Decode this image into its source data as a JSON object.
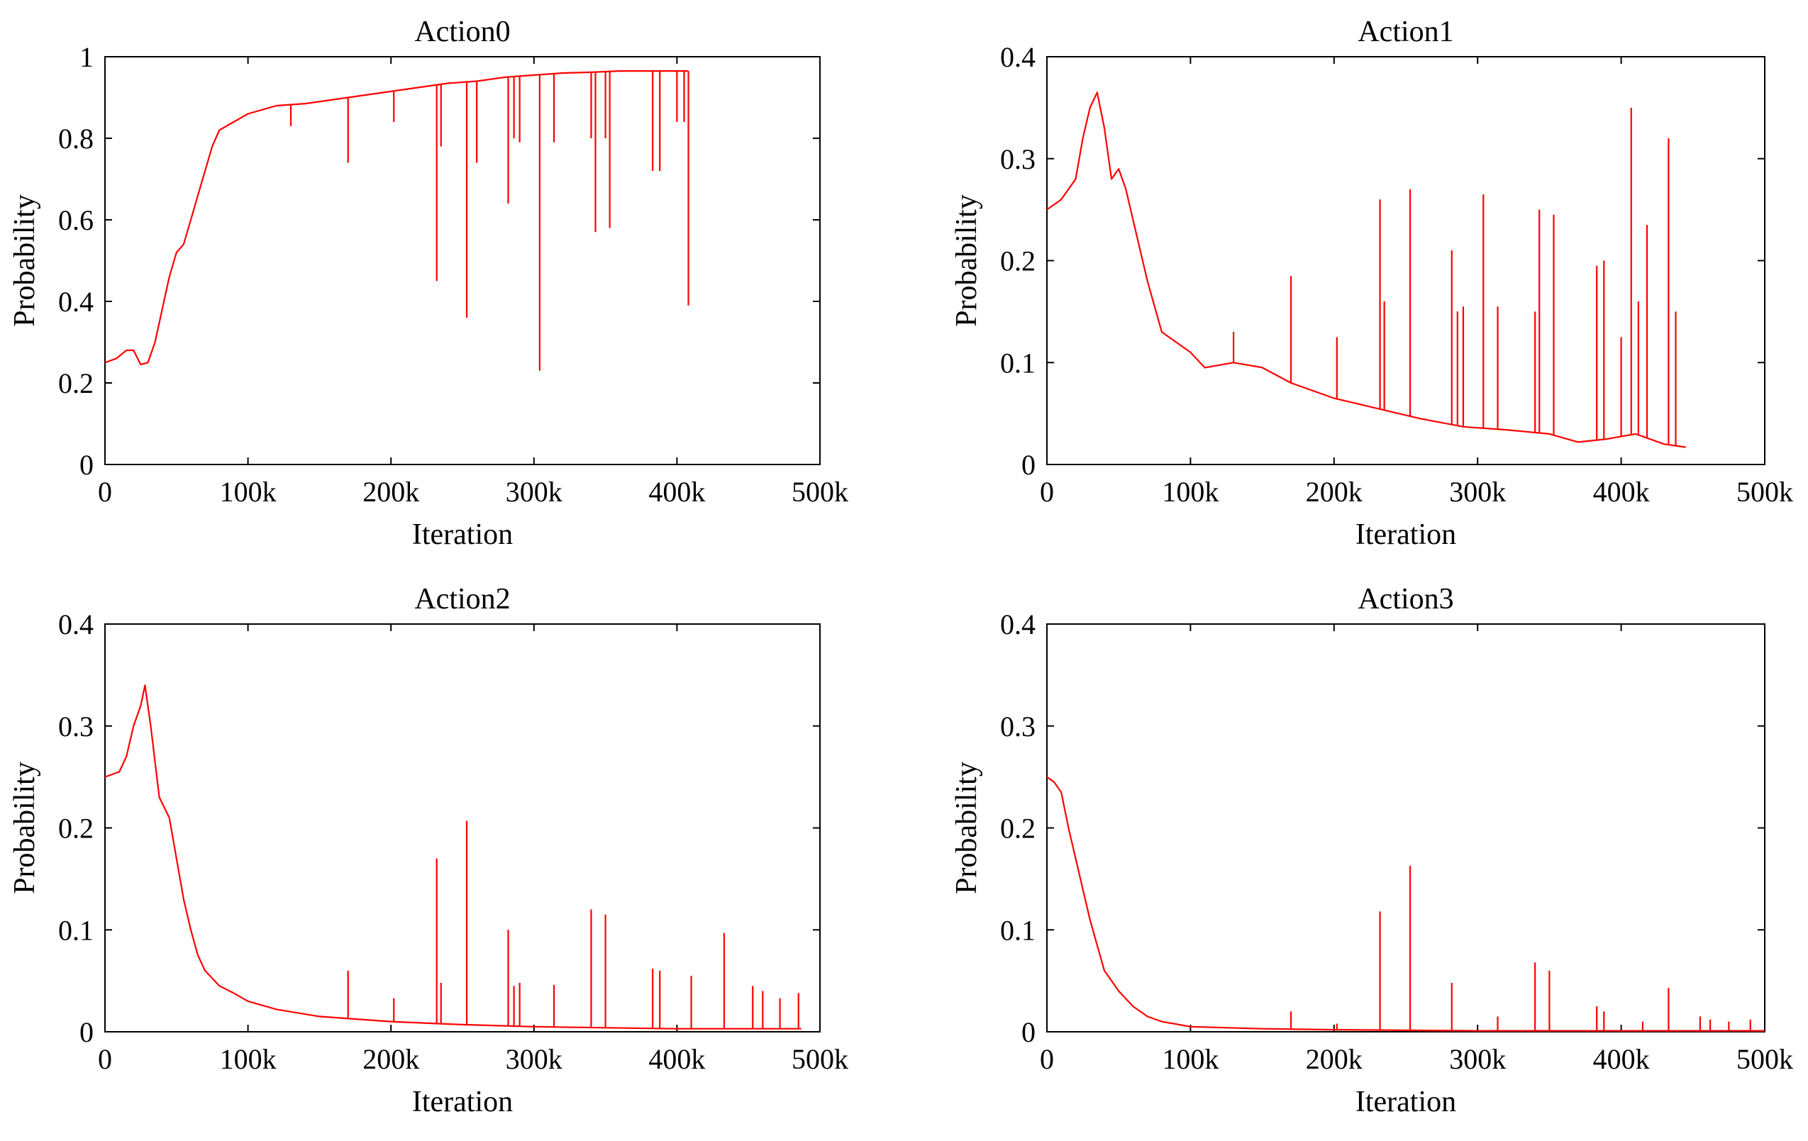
{
  "chart_data": [
    {
      "type": "line",
      "title": "Action0",
      "xlabel": "Iteration",
      "ylabel": "Probability",
      "xlim": [
        0,
        500000
      ],
      "ylim": [
        0,
        1
      ],
      "xticks": [
        0,
        100000,
        200000,
        300000,
        400000,
        500000
      ],
      "xticklabels": [
        "0",
        "100k",
        "200k",
        "300k",
        "400k",
        "500k"
      ],
      "yticks": [
        0,
        0.2,
        0.4,
        0.6,
        0.8,
        1
      ],
      "yticklabels": [
        "0",
        "0.2",
        "0.4",
        "0.6",
        "0.8",
        "1"
      ],
      "color": "#ff0000",
      "series": [
        {
          "name": "Action0",
          "x": [
            0,
            8000,
            15000,
            20000,
            25000,
            30000,
            35000,
            40000,
            45000,
            50000,
            55000,
            60000,
            65000,
            70000,
            75000,
            80000,
            90000,
            100000,
            120000,
            140000,
            160000,
            180000,
            200000,
            220000,
            240000,
            260000,
            280000,
            300000,
            320000,
            340000,
            360000,
            380000,
            400000,
            408000
          ],
          "y": [
            0.25,
            0.26,
            0.28,
            0.28,
            0.245,
            0.25,
            0.3,
            0.38,
            0.46,
            0.52,
            0.54,
            0.6,
            0.66,
            0.72,
            0.78,
            0.82,
            0.84,
            0.86,
            0.88,
            0.885,
            0.895,
            0.905,
            0.915,
            0.925,
            0.935,
            0.94,
            0.95,
            0.955,
            0.96,
            0.962,
            0.965,
            0.965,
            0.965,
            0.965
          ]
        }
      ],
      "spikes": [
        {
          "x": 130000,
          "y": 0.83
        },
        {
          "x": 170000,
          "y": 0.74
        },
        {
          "x": 202000,
          "y": 0.84
        },
        {
          "x": 232000,
          "y": 0.45
        },
        {
          "x": 235000,
          "y": 0.78
        },
        {
          "x": 253000,
          "y": 0.36
        },
        {
          "x": 260000,
          "y": 0.74
        },
        {
          "x": 282000,
          "y": 0.64
        },
        {
          "x": 286000,
          "y": 0.8
        },
        {
          "x": 290000,
          "y": 0.79
        },
        {
          "x": 304000,
          "y": 0.23
        },
        {
          "x": 314000,
          "y": 0.79
        },
        {
          "x": 340000,
          "y": 0.8
        },
        {
          "x": 343000,
          "y": 0.57
        },
        {
          "x": 350000,
          "y": 0.8
        },
        {
          "x": 353000,
          "y": 0.58
        },
        {
          "x": 383000,
          "y": 0.72
        },
        {
          "x": 388000,
          "y": 0.72
        },
        {
          "x": 400000,
          "y": 0.84
        },
        {
          "x": 405000,
          "y": 0.84
        },
        {
          "x": 408000,
          "y": 0.39
        }
      ]
    },
    {
      "type": "line",
      "title": "Action1",
      "xlabel": "Iteration",
      "ylabel": "Probability",
      "xlim": [
        0,
        500000
      ],
      "ylim": [
        0,
        0.4
      ],
      "xticks": [
        0,
        100000,
        200000,
        300000,
        400000,
        500000
      ],
      "xticklabels": [
        "0",
        "100k",
        "200k",
        "300k",
        "400k",
        "500k"
      ],
      "yticks": [
        0,
        0.1,
        0.2,
        0.3,
        0.4
      ],
      "yticklabels": [
        "0",
        "0.1",
        "0.2",
        "0.3",
        "0.4"
      ],
      "color": "#ff0000",
      "series": [
        {
          "name": "Action1",
          "x": [
            0,
            10000,
            20000,
            25000,
            30000,
            35000,
            40000,
            45000,
            50000,
            55000,
            60000,
            70000,
            80000,
            90000,
            100000,
            110000,
            130000,
            150000,
            170000,
            200000,
            230000,
            260000,
            290000,
            320000,
            350000,
            370000,
            390000,
            410000,
            430000,
            445000
          ],
          "y": [
            0.25,
            0.26,
            0.28,
            0.32,
            0.35,
            0.365,
            0.33,
            0.28,
            0.29,
            0.27,
            0.24,
            0.18,
            0.13,
            0.12,
            0.11,
            0.095,
            0.1,
            0.095,
            0.08,
            0.065,
            0.055,
            0.045,
            0.037,
            0.034,
            0.03,
            0.022,
            0.025,
            0.03,
            0.02,
            0.017
          ]
        }
      ],
      "spikes": [
        {
          "x": 130000,
          "y": 0.13
        },
        {
          "x": 170000,
          "y": 0.185
        },
        {
          "x": 202000,
          "y": 0.125
        },
        {
          "x": 232000,
          "y": 0.26
        },
        {
          "x": 235000,
          "y": 0.16
        },
        {
          "x": 253000,
          "y": 0.27
        },
        {
          "x": 282000,
          "y": 0.21
        },
        {
          "x": 286000,
          "y": 0.15
        },
        {
          "x": 290000,
          "y": 0.155
        },
        {
          "x": 304000,
          "y": 0.265
        },
        {
          "x": 314000,
          "y": 0.155
        },
        {
          "x": 340000,
          "y": 0.15
        },
        {
          "x": 343000,
          "y": 0.25
        },
        {
          "x": 353000,
          "y": 0.245
        },
        {
          "x": 383000,
          "y": 0.195
        },
        {
          "x": 388000,
          "y": 0.2
        },
        {
          "x": 400000,
          "y": 0.125
        },
        {
          "x": 407000,
          "y": 0.35
        },
        {
          "x": 412000,
          "y": 0.16
        },
        {
          "x": 418000,
          "y": 0.235
        },
        {
          "x": 433000,
          "y": 0.32
        },
        {
          "x": 438000,
          "y": 0.15
        }
      ]
    },
    {
      "type": "line",
      "title": "Action2",
      "xlabel": "Iteration",
      "ylabel": "Probability",
      "xlim": [
        0,
        500000
      ],
      "ylim": [
        0,
        0.4
      ],
      "xticks": [
        0,
        100000,
        200000,
        300000,
        400000,
        500000
      ],
      "xticklabels": [
        "0",
        "100k",
        "200k",
        "300k",
        "400k",
        "500k"
      ],
      "yticks": [
        0,
        0.1,
        0.2,
        0.3,
        0.4
      ],
      "yticklabels": [
        "0",
        "0.1",
        "0.2",
        "0.3",
        "0.4"
      ],
      "color": "#ff0000",
      "series": [
        {
          "name": "Action2",
          "x": [
            0,
            10000,
            15000,
            20000,
            25000,
            28000,
            32000,
            38000,
            45000,
            50000,
            55000,
            60000,
            65000,
            70000,
            80000,
            90000,
            100000,
            120000,
            150000,
            200000,
            250000,
            300000,
            350000,
            400000,
            450000,
            487000
          ],
          "y": [
            0.25,
            0.255,
            0.27,
            0.3,
            0.32,
            0.34,
            0.3,
            0.23,
            0.21,
            0.17,
            0.13,
            0.1,
            0.075,
            0.06,
            0.045,
            0.038,
            0.03,
            0.022,
            0.015,
            0.01,
            0.007,
            0.005,
            0.004,
            0.003,
            0.003,
            0.003
          ]
        }
      ],
      "spikes": [
        {
          "x": 170000,
          "y": 0.06
        },
        {
          "x": 202000,
          "y": 0.033
        },
        {
          "x": 232000,
          "y": 0.17
        },
        {
          "x": 235000,
          "y": 0.048
        },
        {
          "x": 253000,
          "y": 0.207
        },
        {
          "x": 282000,
          "y": 0.1
        },
        {
          "x": 286000,
          "y": 0.045
        },
        {
          "x": 290000,
          "y": 0.048
        },
        {
          "x": 314000,
          "y": 0.046
        },
        {
          "x": 340000,
          "y": 0.12
        },
        {
          "x": 350000,
          "y": 0.115
        },
        {
          "x": 383000,
          "y": 0.062
        },
        {
          "x": 388000,
          "y": 0.06
        },
        {
          "x": 410000,
          "y": 0.055
        },
        {
          "x": 433000,
          "y": 0.097
        },
        {
          "x": 453000,
          "y": 0.045
        },
        {
          "x": 460000,
          "y": 0.04
        },
        {
          "x": 472000,
          "y": 0.033
        },
        {
          "x": 485000,
          "y": 0.038
        }
      ]
    },
    {
      "type": "line",
      "title": "Action3",
      "xlabel": "Iteration",
      "ylabel": "Probability",
      "xlim": [
        0,
        500000
      ],
      "ylim": [
        0,
        0.4
      ],
      "xticks": [
        0,
        100000,
        200000,
        300000,
        400000,
        500000
      ],
      "xticklabels": [
        "0",
        "100k",
        "200k",
        "300k",
        "400k",
        "500k"
      ],
      "yticks": [
        0,
        0.1,
        0.2,
        0.3,
        0.4
      ],
      "yticklabels": [
        "0",
        "0.1",
        "0.2",
        "0.3",
        "0.4"
      ],
      "color": "#ff0000",
      "series": [
        {
          "name": "Action3",
          "x": [
            0,
            5000,
            10000,
            15000,
            20000,
            25000,
            30000,
            35000,
            40000,
            50000,
            60000,
            70000,
            80000,
            100000,
            150000,
            200000,
            300000,
            400000,
            500000
          ],
          "y": [
            0.25,
            0.245,
            0.235,
            0.2,
            0.17,
            0.14,
            0.11,
            0.085,
            0.06,
            0.04,
            0.025,
            0.015,
            0.01,
            0.005,
            0.003,
            0.002,
            0.001,
            0.001,
            0.001
          ]
        }
      ],
      "spikes": [
        {
          "x": 170000,
          "y": 0.02
        },
        {
          "x": 202000,
          "y": 0.008
        },
        {
          "x": 232000,
          "y": 0.118
        },
        {
          "x": 253000,
          "y": 0.163
        },
        {
          "x": 282000,
          "y": 0.048
        },
        {
          "x": 314000,
          "y": 0.015
        },
        {
          "x": 340000,
          "y": 0.068
        },
        {
          "x": 350000,
          "y": 0.06
        },
        {
          "x": 383000,
          "y": 0.025
        },
        {
          "x": 388000,
          "y": 0.02
        },
        {
          "x": 415000,
          "y": 0.01
        },
        {
          "x": 433000,
          "y": 0.043
        },
        {
          "x": 455000,
          "y": 0.015
        },
        {
          "x": 462000,
          "y": 0.012
        },
        {
          "x": 475000,
          "y": 0.01
        },
        {
          "x": 490000,
          "y": 0.012
        }
      ]
    }
  ]
}
